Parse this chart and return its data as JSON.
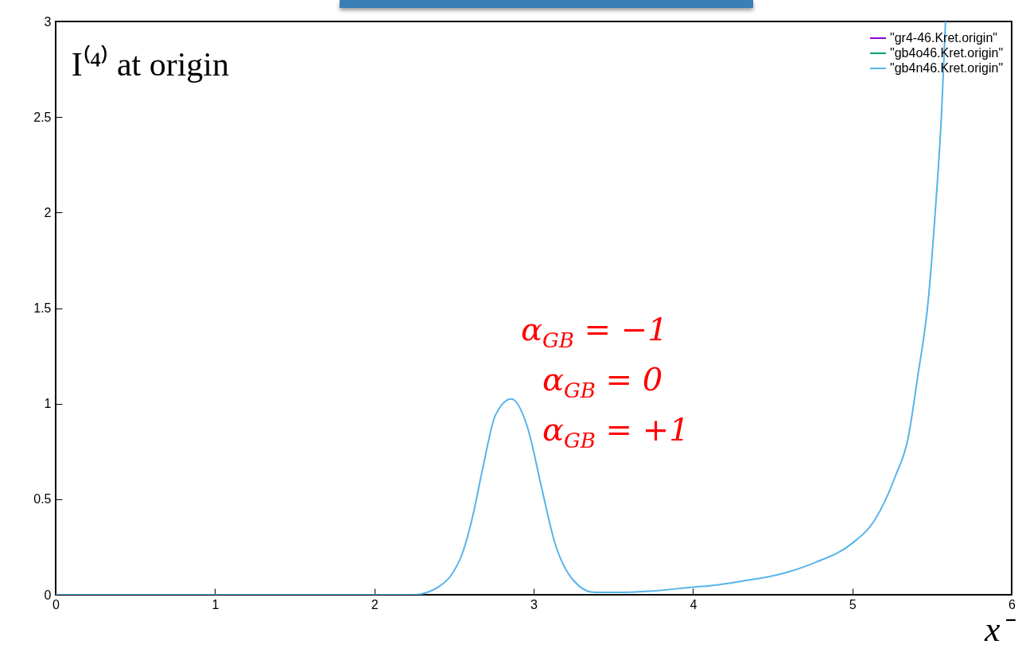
{
  "chart_data": {
    "type": "line",
    "title": "I⁽⁴⁾ at origin",
    "xlabel": "x⁻",
    "x": [
      0,
      0.5,
      1,
      1.5,
      2,
      2.25,
      2.3,
      2.4,
      2.48,
      2.55,
      2.62,
      2.68,
      2.76,
      2.86,
      2.96,
      3.05,
      3.13,
      3.25,
      3.38,
      3.5,
      3.75,
      4,
      4.14,
      4.3,
      4.56,
      4.77,
      5.0,
      5.14,
      5.27,
      5.35,
      5.41,
      5.48,
      5.52,
      5.56,
      5.585
    ],
    "series": [
      {
        "name": "\"gr4-46.Kret.origin\"",
        "color": "#9400d3",
        "values": [
          null,
          null,
          null,
          null,
          null,
          null,
          null,
          null,
          null,
          null,
          null,
          null,
          null,
          null,
          null,
          null,
          null,
          null,
          null,
          null,
          null,
          null,
          null,
          null,
          null,
          null,
          null,
          null,
          null,
          null,
          null,
          null,
          null,
          null,
          null
        ]
      },
      {
        "name": "\"gb4o46.Kret.origin\"",
        "color": "#009e73",
        "values": [
          null,
          null,
          null,
          null,
          null,
          null,
          null,
          null,
          null,
          null,
          null,
          null,
          null,
          null,
          null,
          null,
          null,
          null,
          null,
          null,
          null,
          null,
          null,
          null,
          null,
          null,
          null,
          null,
          null,
          null,
          null,
          null,
          null,
          null,
          null
        ]
      },
      {
        "name": "\"gb4n46.Kret.origin\"",
        "color": "#56b4e9",
        "values": [
          0,
          0,
          0,
          0,
          0,
          0,
          0.005,
          0.04,
          0.1,
          0.21,
          0.42,
          0.66,
          0.94,
          1.025,
          0.88,
          0.56,
          0.28,
          0.075,
          0.012,
          0.012,
          0.02,
          0.04,
          0.05,
          0.07,
          0.11,
          0.17,
          0.27,
          0.39,
          0.62,
          0.82,
          1.14,
          1.57,
          2.0,
          2.52,
          3.0
        ]
      }
    ],
    "xlim": [
      0,
      6
    ],
    "ylim": [
      0,
      3
    ],
    "xticks": [
      0,
      1,
      2,
      3,
      4,
      5,
      6
    ],
    "yticks": [
      0,
      0.5,
      1,
      1.5,
      2,
      2.5,
      3
    ],
    "legend": "top right",
    "annotations": [
      "α$_{GB}$ = −1",
      "α$_{GB}$ = 0",
      "α$_{GB}$ = +1"
    ]
  }
}
